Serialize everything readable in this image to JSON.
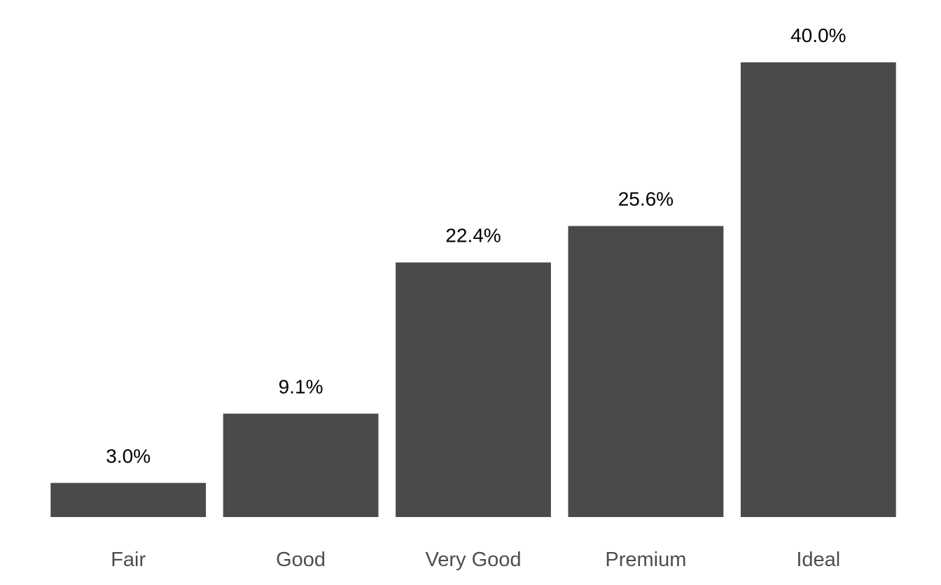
{
  "chart_data": {
    "type": "bar",
    "categories": [
      "Fair",
      "Good",
      "Very Good",
      "Premium",
      "Ideal"
    ],
    "values": [
      3.0,
      9.1,
      22.4,
      25.6,
      40.0
    ],
    "value_labels": [
      "3.0%",
      "9.1%",
      "22.4%",
      "25.6%",
      "40.0%"
    ],
    "unit": "%",
    "title": "",
    "xlabel": "",
    "ylabel": "",
    "ylim": [
      0,
      40
    ],
    "grid": false,
    "legend": "none",
    "bar_color": "#4a4a4a"
  }
}
